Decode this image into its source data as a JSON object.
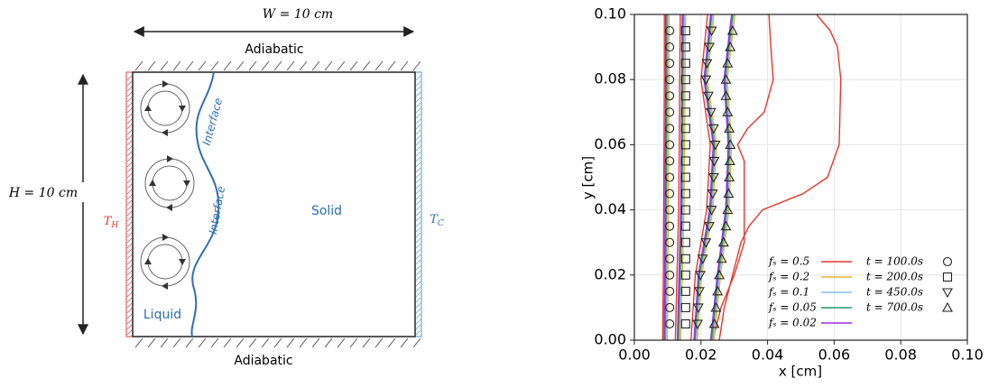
{
  "diagram": {
    "width_label": "W = 10 cm",
    "height_label": "H = 10 cm",
    "top_boundary": "Adiabatic",
    "bottom_boundary": "Adiabatic",
    "hot_wall": {
      "main": "T",
      "sub": "H"
    },
    "cold_wall": {
      "main": "T",
      "sub": "C"
    },
    "solid_label": "Solid",
    "liquid_label": "Liquid",
    "interface_labels": [
      "Interface",
      "Interface"
    ]
  },
  "chart_data": {
    "type": "line",
    "xlabel": "x [cm]",
    "ylabel": "y [cm]",
    "xlim": [
      0,
      0.1
    ],
    "ylim": [
      0,
      0.1
    ],
    "xticks": [
      {
        "value": 0,
        "label": "0.00"
      },
      {
        "value": 0.02,
        "label": "0.02"
      },
      {
        "value": 0.04,
        "label": "0.04"
      },
      {
        "value": 0.06,
        "label": "0.06"
      },
      {
        "value": 0.08,
        "label": "0.08"
      },
      {
        "value": 0.1,
        "label": "0.10"
      }
    ],
    "yticks": [
      {
        "value": 0,
        "label": "0.00"
      },
      {
        "value": 0.02,
        "label": "0.02"
      },
      {
        "value": 0.04,
        "label": "0.04"
      },
      {
        "value": 0.06,
        "label": "0.06"
      },
      {
        "value": 0.08,
        "label": "0.08"
      },
      {
        "value": 0.1,
        "label": "0.10"
      }
    ],
    "grid": true,
    "legend": "lower right",
    "series": [
      {
        "name": "fₛ = 0.5",
        "color": "#e8372c",
        "x": [
          0.0085,
          0.0087,
          0.0088,
          0.0089,
          0.009,
          0.009,
          null,
          0.0123,
          0.0128,
          0.0133,
          0.0135,
          0.0136,
          0.0138,
          null,
          0.017,
          0.0183,
          0.0217,
          0.0228,
          0.02,
          0.022,
          null,
          0.0236,
          0.026,
          0.03,
          0.033,
          0.033,
          0.033,
          0.033,
          0.031,
          0.034,
          0.039,
          0.0417,
          0.041,
          0.0404,
          null,
          0.0255,
          0.027,
          0.0295,
          0.032,
          0.0344,
          0.0385,
          0.0507,
          0.058,
          0.0615,
          0.062,
          0.061,
          0.0588,
          0.0547
        ],
        "values": [
          0,
          0.02,
          0.04,
          0.06,
          0.08,
          0.1,
          null,
          0,
          0.02,
          0.04,
          0.06,
          0.08,
          0.1,
          null,
          0,
          0.02,
          0.04,
          0.06,
          0.08,
          0.1,
          null,
          0,
          0.01,
          0.02,
          0.03,
          0.04,
          0.05,
          0.055,
          0.06,
          0.065,
          0.07,
          0.08,
          0.09,
          0.1,
          null,
          0,
          0.01,
          0.02,
          0.03,
          0.035,
          0.04,
          0.045,
          0.05,
          0.06,
          0.08,
          0.09,
          0.095,
          0.1
        ]
      },
      {
        "name": "fₛ = 0.2",
        "color": "#e8b530",
        "x": [
          0.0099,
          0.0101,
          0.0102,
          0.0103,
          0.0104,
          0.0104,
          null,
          0.0139,
          0.0144,
          0.0149,
          0.0151,
          0.0152,
          0.0154,
          null,
          0.0189,
          0.0202,
          0.0236,
          0.0247,
          0.0219,
          0.0239,
          null,
          0.0239,
          0.0259,
          0.0284,
          0.0292,
          0.0279,
          0.0302
        ],
        "values": [
          0,
          0.02,
          0.04,
          0.06,
          0.08,
          0.1,
          null,
          0,
          0.02,
          0.04,
          0.06,
          0.08,
          0.1,
          null,
          0,
          0.02,
          0.04,
          0.06,
          0.08,
          0.1,
          null,
          0,
          0.02,
          0.04,
          0.06,
          0.08,
          0.1
        ]
      },
      {
        "name": "fₛ = 0.1",
        "color": "#86bfea",
        "x": [
          0.0095,
          0.0097,
          0.0098,
          0.0099,
          0.01,
          0.01,
          null,
          0.0135,
          0.014,
          0.0145,
          0.0147,
          0.0148,
          0.015,
          null,
          0.0185,
          0.0198,
          0.0232,
          0.0243,
          0.0215,
          0.0235,
          null,
          0.0235,
          0.0255,
          0.028,
          0.0288,
          0.0275,
          0.0298
        ],
        "values": [
          0,
          0.02,
          0.04,
          0.06,
          0.08,
          0.1,
          null,
          0,
          0.02,
          0.04,
          0.06,
          0.08,
          0.1,
          null,
          0,
          0.02,
          0.04,
          0.06,
          0.08,
          0.1,
          null,
          0,
          0.02,
          0.04,
          0.06,
          0.08,
          0.1
        ]
      },
      {
        "name": "fₛ = 0.05",
        "color": "#1f9c6a",
        "x": [
          0.0092,
          0.0094,
          0.0095,
          0.0096,
          0.0097,
          0.0097,
          null,
          0.0132,
          0.0137,
          0.0142,
          0.0144,
          0.0145,
          0.0147,
          null,
          0.0182,
          0.0195,
          0.0229,
          0.024,
          0.0212,
          0.0232,
          null,
          0.0232,
          0.0252,
          0.0277,
          0.0285,
          0.0272,
          0.0295
        ],
        "values": [
          0,
          0.02,
          0.04,
          0.06,
          0.08,
          0.1,
          null,
          0,
          0.02,
          0.04,
          0.06,
          0.08,
          0.1,
          null,
          0,
          0.02,
          0.04,
          0.06,
          0.08,
          0.1,
          null,
          0,
          0.02,
          0.04,
          0.06,
          0.08,
          0.1
        ]
      },
      {
        "name": "fₛ = 0.02",
        "color": "#a12ee0",
        "x": [
          0.0089,
          0.0091,
          0.0092,
          0.0093,
          0.0094,
          0.0094,
          null,
          0.0129,
          0.0134,
          0.0139,
          0.0141,
          0.0142,
          0.0144,
          null,
          0.0179,
          0.0192,
          0.0226,
          0.0237,
          0.0209,
          0.0229,
          null,
          0.0229,
          0.0249,
          0.0274,
          0.0282,
          0.0269,
          0.0292
        ],
        "values": [
          0,
          0.02,
          0.04,
          0.06,
          0.08,
          0.1,
          null,
          0,
          0.02,
          0.04,
          0.06,
          0.08,
          0.1,
          null,
          0,
          0.02,
          0.04,
          0.06,
          0.08,
          0.1,
          null,
          0,
          0.02,
          0.04,
          0.06,
          0.08,
          0.1
        ]
      }
    ],
    "markers": [
      {
        "name": "t = 100.0s",
        "marker": "circle",
        "color": "#222222",
        "x": [
          0.0106,
          0.0106,
          0.0106,
          0.0106,
          0.0106,
          0.0106,
          0.0106,
          0.0106,
          0.0106,
          0.0106,
          0.0106,
          0.0106,
          0.0106,
          0.0106,
          0.0106,
          0.0106,
          0.0106,
          0.0106,
          0.0106
        ],
        "values": [
          0.005,
          0.01,
          0.015,
          0.02,
          0.025,
          0.03,
          0.035,
          0.04,
          0.045,
          0.05,
          0.055,
          0.06,
          0.065,
          0.07,
          0.075,
          0.08,
          0.085,
          0.09,
          0.095
        ]
      },
      {
        "name": "t = 200.0s",
        "marker": "square",
        "color": "#222222",
        "x": [
          0.0154,
          0.0154,
          0.0154,
          0.0154,
          0.0154,
          0.0154,
          0.0154,
          0.0154,
          0.0154,
          0.0154,
          0.0154,
          0.0154,
          0.0154,
          0.0154,
          0.0154,
          0.0154,
          0.0154,
          0.0154,
          0.0154
        ],
        "values": [
          0.005,
          0.01,
          0.015,
          0.02,
          0.025,
          0.03,
          0.035,
          0.04,
          0.045,
          0.05,
          0.055,
          0.06,
          0.065,
          0.07,
          0.075,
          0.08,
          0.085,
          0.09,
          0.095
        ]
      },
      {
        "name": "t = 450.0s",
        "marker": "triangle-down",
        "color": "#222222",
        "x": [
          0.019,
          0.0192,
          0.0195,
          0.0198,
          0.0205,
          0.0215,
          0.0225,
          0.0232,
          0.0235,
          0.0238,
          0.024,
          0.0243,
          0.0238,
          0.023,
          0.0222,
          0.0215,
          0.0218,
          0.0225,
          0.0232
        ],
        "values": [
          0.005,
          0.01,
          0.015,
          0.02,
          0.025,
          0.03,
          0.035,
          0.04,
          0.045,
          0.05,
          0.055,
          0.06,
          0.065,
          0.07,
          0.075,
          0.08,
          0.085,
          0.09,
          0.095
        ]
      },
      {
        "name": "t = 700.0s",
        "marker": "triangle-up",
        "color": "#222222",
        "x": [
          0.024,
          0.0245,
          0.025,
          0.0255,
          0.0262,
          0.0268,
          0.0275,
          0.028,
          0.0283,
          0.0285,
          0.0287,
          0.0288,
          0.0285,
          0.028,
          0.0275,
          0.0275,
          0.028,
          0.0288,
          0.0295
        ],
        "values": [
          0.005,
          0.01,
          0.015,
          0.02,
          0.025,
          0.03,
          0.035,
          0.04,
          0.045,
          0.05,
          0.055,
          0.06,
          0.065,
          0.07,
          0.075,
          0.08,
          0.085,
          0.09,
          0.095
        ]
      }
    ]
  }
}
